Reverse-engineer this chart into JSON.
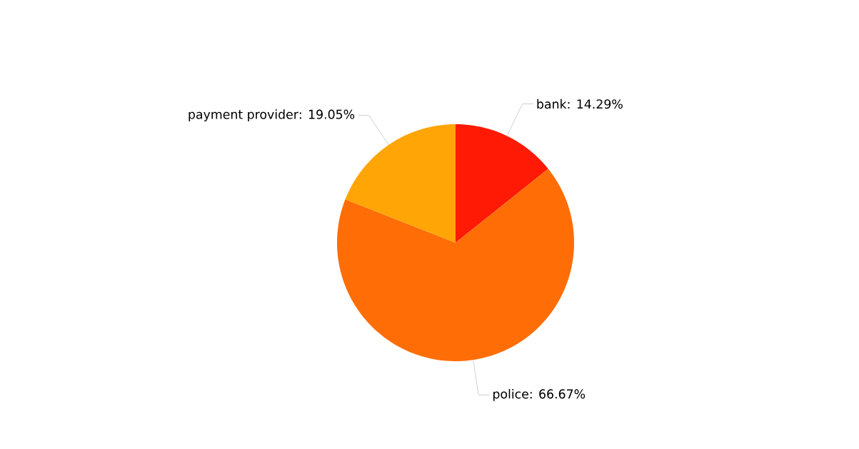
{
  "chart_data": {
    "type": "pie",
    "categories": [
      "bank",
      "police",
      "payment provider"
    ],
    "values": [
      14.29,
      66.67,
      19.05
    ],
    "value_labels": [
      ": 14.29%",
      ": 66.67%",
      ": 19.05%"
    ],
    "colors": [
      "#ff1a06",
      "#ff6d06",
      "#ffa506"
    ]
  }
}
